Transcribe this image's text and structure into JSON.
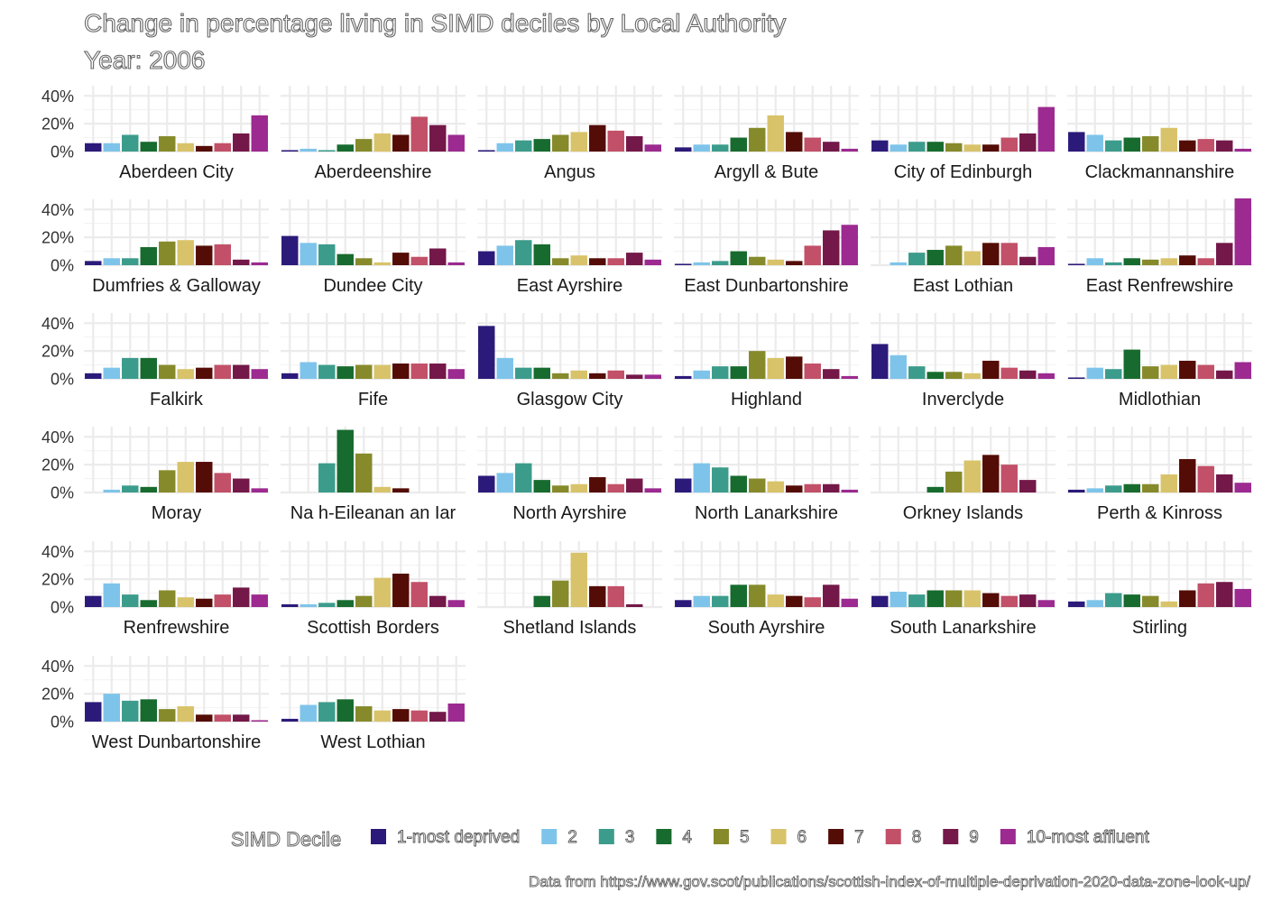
{
  "chart_data": {
    "type": "bar",
    "title": "Change in percentage living in SIMD deciles by Local Authority",
    "subtitle": "Year: 2006",
    "caption": "Data from https://www.gov.scot/publications/scottish-index-of-multiple-deprivation-2020-data-zone-look-up/",
    "legend_title": "SIMD Decile",
    "legend_position": "bottom",
    "categories": [
      "1-most deprived",
      "2",
      "3",
      "4",
      "5",
      "6",
      "7",
      "8",
      "9",
      "10-most affluent"
    ],
    "colors": [
      "#2c1a7a",
      "#7ec4ea",
      "#3c9c8c",
      "#176b2e",
      "#868a2a",
      "#d8c36a",
      "#540c06",
      "#c25068",
      "#731848",
      "#9c2a90"
    ],
    "y_ticks": [
      "0%",
      "20%",
      "40%"
    ],
    "ylim": [
      0,
      0.46
    ],
    "grid": true,
    "panels": [
      {
        "name": "Aberdeen City",
        "values": [
          0.06,
          0.06,
          0.12,
          0.07,
          0.11,
          0.06,
          0.04,
          0.06,
          0.13,
          0.26
        ]
      },
      {
        "name": "Aberdeenshire",
        "values": [
          0.01,
          0.02,
          0.01,
          0.05,
          0.09,
          0.13,
          0.12,
          0.25,
          0.19,
          0.12
        ]
      },
      {
        "name": "Angus",
        "values": [
          0.01,
          0.06,
          0.08,
          0.09,
          0.12,
          0.14,
          0.19,
          0.15,
          0.11,
          0.05
        ]
      },
      {
        "name": "Argyll & Bute",
        "values": [
          0.03,
          0.05,
          0.05,
          0.1,
          0.17,
          0.26,
          0.14,
          0.1,
          0.07,
          0.02
        ]
      },
      {
        "name": "City of Edinburgh",
        "values": [
          0.08,
          0.05,
          0.07,
          0.07,
          0.06,
          0.05,
          0.05,
          0.1,
          0.13,
          0.32
        ]
      },
      {
        "name": "Clackmannanshire",
        "values": [
          0.14,
          0.12,
          0.08,
          0.1,
          0.11,
          0.17,
          0.08,
          0.09,
          0.08,
          0.02
        ]
      },
      {
        "name": "Dumfries & Galloway",
        "values": [
          0.03,
          0.05,
          0.05,
          0.13,
          0.17,
          0.18,
          0.14,
          0.15,
          0.04,
          0.02
        ]
      },
      {
        "name": "Dundee City",
        "values": [
          0.21,
          0.16,
          0.15,
          0.08,
          0.05,
          0.02,
          0.09,
          0.06,
          0.12,
          0.02
        ]
      },
      {
        "name": "East Ayrshire",
        "values": [
          0.1,
          0.14,
          0.18,
          0.15,
          0.05,
          0.07,
          0.05,
          0.05,
          0.09,
          0.04
        ]
      },
      {
        "name": "East Dunbartonshire",
        "values": [
          0.01,
          0.02,
          0.03,
          0.1,
          0.06,
          0.04,
          0.03,
          0.14,
          0.25,
          0.29
        ]
      },
      {
        "name": "East Lothian",
        "values": [
          0.0,
          0.02,
          0.09,
          0.11,
          0.14,
          0.1,
          0.16,
          0.16,
          0.06,
          0.13
        ]
      },
      {
        "name": "East Renfrewshire",
        "values": [
          0.01,
          0.05,
          0.02,
          0.05,
          0.04,
          0.05,
          0.07,
          0.05,
          0.16,
          0.48
        ]
      },
      {
        "name": "Falkirk",
        "values": [
          0.04,
          0.08,
          0.15,
          0.15,
          0.1,
          0.07,
          0.08,
          0.1,
          0.1,
          0.07
        ]
      },
      {
        "name": "Fife",
        "values": [
          0.04,
          0.12,
          0.1,
          0.09,
          0.1,
          0.1,
          0.11,
          0.11,
          0.11,
          0.07
        ]
      },
      {
        "name": "Glasgow City",
        "values": [
          0.38,
          0.15,
          0.08,
          0.08,
          0.04,
          0.06,
          0.04,
          0.06,
          0.03,
          0.03
        ]
      },
      {
        "name": "Highland",
        "values": [
          0.02,
          0.06,
          0.09,
          0.09,
          0.2,
          0.15,
          0.16,
          0.11,
          0.07,
          0.02
        ]
      },
      {
        "name": "Inverclyde",
        "values": [
          0.25,
          0.17,
          0.09,
          0.05,
          0.05,
          0.04,
          0.13,
          0.08,
          0.06,
          0.04
        ]
      },
      {
        "name": "Midlothian",
        "values": [
          0.01,
          0.08,
          0.07,
          0.21,
          0.09,
          0.1,
          0.13,
          0.1,
          0.06,
          0.12
        ]
      },
      {
        "name": "Moray",
        "values": [
          0.0,
          0.02,
          0.05,
          0.04,
          0.16,
          0.22,
          0.22,
          0.14,
          0.1,
          0.03
        ]
      },
      {
        "name": "Na h-Eileanan an Iar",
        "values": [
          0.0,
          0.0,
          0.21,
          0.45,
          0.28,
          0.04,
          0.03,
          0.0,
          0.0,
          0.0
        ]
      },
      {
        "name": "North Ayrshire",
        "values": [
          0.12,
          0.14,
          0.21,
          0.09,
          0.05,
          0.06,
          0.11,
          0.06,
          0.1,
          0.03
        ]
      },
      {
        "name": "North Lanarkshire",
        "values": [
          0.1,
          0.21,
          0.18,
          0.12,
          0.1,
          0.08,
          0.05,
          0.06,
          0.06,
          0.02
        ]
      },
      {
        "name": "Orkney Islands",
        "values": [
          0.0,
          0.0,
          0.0,
          0.04,
          0.15,
          0.23,
          0.27,
          0.2,
          0.09,
          0.0
        ]
      },
      {
        "name": "Perth & Kinross",
        "values": [
          0.02,
          0.03,
          0.05,
          0.06,
          0.06,
          0.13,
          0.24,
          0.19,
          0.13,
          0.07
        ]
      },
      {
        "name": "Renfrewshire",
        "values": [
          0.08,
          0.17,
          0.09,
          0.05,
          0.12,
          0.07,
          0.06,
          0.09,
          0.14,
          0.09
        ]
      },
      {
        "name": "Scottish Borders",
        "values": [
          0.02,
          0.02,
          0.03,
          0.05,
          0.08,
          0.21,
          0.24,
          0.18,
          0.08,
          0.05
        ]
      },
      {
        "name": "Shetland Islands",
        "values": [
          0.0,
          0.0,
          0.0,
          0.08,
          0.19,
          0.39,
          0.15,
          0.15,
          0.02,
          0.0
        ]
      },
      {
        "name": "South Ayrshire",
        "values": [
          0.05,
          0.08,
          0.08,
          0.16,
          0.16,
          0.09,
          0.08,
          0.07,
          0.16,
          0.06
        ]
      },
      {
        "name": "South Lanarkshire",
        "values": [
          0.08,
          0.11,
          0.09,
          0.12,
          0.12,
          0.12,
          0.1,
          0.08,
          0.09,
          0.05
        ]
      },
      {
        "name": "Stirling",
        "values": [
          0.04,
          0.05,
          0.1,
          0.09,
          0.08,
          0.04,
          0.12,
          0.17,
          0.18,
          0.13
        ]
      },
      {
        "name": "West Dunbartonshire",
        "values": [
          0.14,
          0.2,
          0.15,
          0.16,
          0.09,
          0.11,
          0.05,
          0.05,
          0.05,
          0.01
        ]
      },
      {
        "name": "West Lothian",
        "values": [
          0.02,
          0.12,
          0.14,
          0.16,
          0.11,
          0.08,
          0.09,
          0.08,
          0.07,
          0.13
        ]
      }
    ]
  }
}
